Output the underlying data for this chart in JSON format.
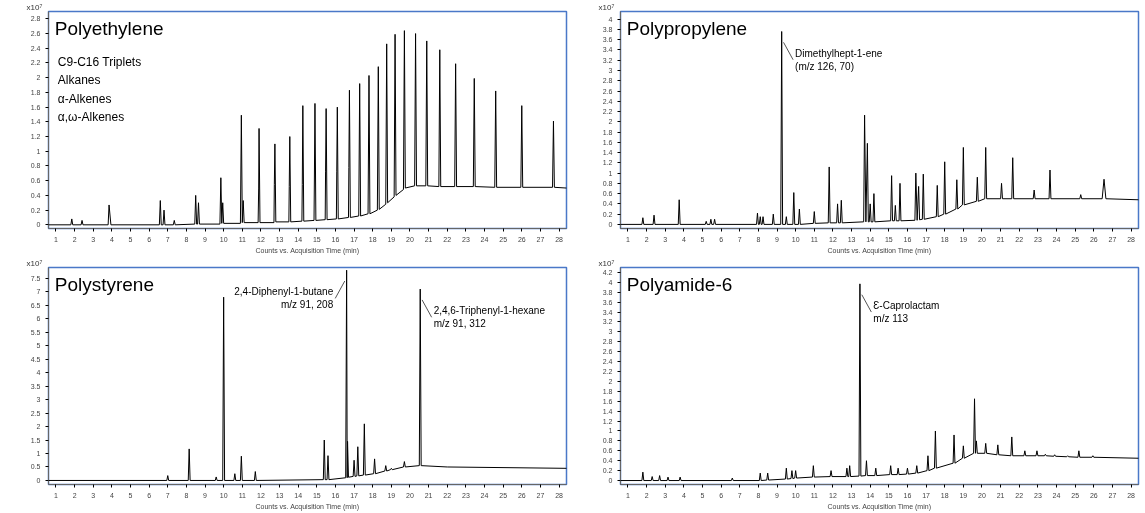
{
  "chart_data": [
    {
      "type": "line",
      "title": "Polyethylene",
      "xlabel": "Counts vs. Acquisition Time (min)",
      "ylabel": "x10⁷",
      "annotations": [
        "C9-C16 Triplets",
        "Alkanes",
        "α-Alkenes",
        "α,ω-Alkenes"
      ],
      "xlim": [
        0.6,
        28.4
      ],
      "xticks": [
        1,
        2,
        3,
        4,
        5,
        6,
        7,
        8,
        9,
        10,
        11,
        12,
        13,
        14,
        15,
        16,
        17,
        18,
        19,
        20,
        21,
        22,
        23,
        24,
        25,
        26,
        27,
        28
      ],
      "ylim": [
        -0.05,
        2.9
      ],
      "yticks": [
        0,
        0.2,
        0.4,
        0.6,
        0.8,
        1,
        1.2,
        1.4,
        1.6,
        1.8,
        2,
        2.2,
        2.4,
        2.6,
        2.8
      ],
      "series": [
        {
          "color": "#000000",
          "x": [
            0.6,
            1.8,
            1.85,
            1.9,
            2.35,
            2.4,
            2.45,
            3.8,
            3.85,
            3.95,
            6.55,
            6.6,
            6.65,
            6.75,
            6.8,
            6.85,
            7.3,
            7.35,
            7.4,
            8.45,
            8.5,
            8.55,
            8.6,
            8.65,
            8.7,
            9.8,
            9.85,
            9.9,
            9.95,
            10,
            10.9,
            10.95,
            11,
            11.05,
            11.1,
            11.85,
            11.88,
            11.9,
            11.95,
            12.7,
            12.72,
            12.75,
            12.8,
            13.5,
            13.52,
            13.55,
            13.6,
            14.2,
            14.22,
            14.25,
            14.3,
            14.85,
            14.87,
            14.9,
            14.95,
            15.45,
            15.47,
            15.5,
            15.55,
            16.05,
            16.07,
            16.1,
            16.15,
            16.7,
            16.72,
            16.75,
            16.8,
            17.25,
            17.3,
            17.35,
            17.75,
            17.8,
            17.85,
            18.25,
            18.3,
            18.35,
            18.7,
            18.75,
            18.8,
            19.15,
            19.2,
            19.25,
            19.65,
            19.7,
            19.75,
            20.25,
            20.3,
            20.35,
            20.85,
            20.9,
            20.95,
            21.55,
            21.6,
            21.65,
            22.4,
            22.45,
            22.5,
            23.4,
            23.45,
            23.5,
            24.55,
            24.6,
            24.65,
            25.95,
            26,
            26.05,
            27.65,
            27.7,
            27.75,
            28.4
          ],
          "values": [
            0,
            0,
            0.08,
            0,
            0,
            0.06,
            0,
            0,
            0.27,
            0,
            0,
            0.33,
            0,
            0,
            0.2,
            0,
            0,
            0.06,
            0,
            0.01,
            0.4,
            0.01,
            0.01,
            0.3,
            0.01,
            0.01,
            0.64,
            0.02,
            0.3,
            0.02,
            0.02,
            1.49,
            0.03,
            0.33,
            0.03,
            0.03,
            0.5,
            1.31,
            0.03,
            0.03,
            0.55,
            1.1,
            0.04,
            0.04,
            0.52,
            1.2,
            0.04,
            0.05,
            0.55,
            1.62,
            0.05,
            0.06,
            0.65,
            1.65,
            0.06,
            0.07,
            0.73,
            1.58,
            0.07,
            0.08,
            0.72,
            1.6,
            0.08,
            0.1,
            0.78,
            1.83,
            0.1,
            0.12,
            1.92,
            0.12,
            0.15,
            2.03,
            0.15,
            0.2,
            2.15,
            0.21,
            0.28,
            2.46,
            0.3,
            0.38,
            2.59,
            0.4,
            0.48,
            2.64,
            0.5,
            0.53,
            2.6,
            0.53,
            0.53,
            2.5,
            0.53,
            0.52,
            2.38,
            0.52,
            0.52,
            2.19,
            0.52,
            0.52,
            1.99,
            0.52,
            0.51,
            1.82,
            0.51,
            0.51,
            1.62,
            0.51,
            0.51,
            1.41,
            0.51,
            0.5
          ]
        }
      ]
    },
    {
      "type": "line",
      "title": "Polypropylene",
      "xlabel": "Counts vs. Acquisition Time (min)",
      "ylabel": "x10⁷",
      "annotations": [
        {
          "text": "Dimethylhept-1-ene\n(m/z 126, 70)",
          "x": 9.25,
          "y": 3.76
        }
      ],
      "xlim": [
        0.6,
        28.4
      ],
      "xticks": [
        1,
        2,
        3,
        4,
        5,
        6,
        7,
        8,
        9,
        10,
        11,
        12,
        13,
        14,
        15,
        16,
        17,
        18,
        19,
        20,
        21,
        22,
        23,
        24,
        25,
        26,
        27,
        28
      ],
      "ylim": [
        -0.08,
        4.15
      ],
      "yticks": [
        0,
        0.2,
        0.4,
        0.6,
        0.8,
        1,
        1.2,
        1.4,
        1.6,
        1.8,
        2,
        2.2,
        2.4,
        2.6,
        2.8,
        3,
        3.2,
        3.4,
        3.6,
        3.8,
        4
      ],
      "series": [
        {
          "color": "#000000",
          "x": [
            0.6,
            1.75,
            1.8,
            1.85,
            2.35,
            2.4,
            2.45,
            3.7,
            3.75,
            3.8,
            5.15,
            5.2,
            5.25,
            5.4,
            5.45,
            5.5,
            5.6,
            5.65,
            5.7,
            7.9,
            7.95,
            8.0,
            8.05,
            8.1,
            8.15,
            8.2,
            8.25,
            8.3,
            8.75,
            8.8,
            8.85,
            9.2,
            9.25,
            9.3,
            9.45,
            9.5,
            9.55,
            9.85,
            9.9,
            9.95,
            10.15,
            10.2,
            10.25,
            10.95,
            11,
            11.05,
            11.75,
            11.8,
            11.85,
            12.2,
            12.25,
            12.3,
            12.4,
            12.45,
            12.5,
            13.65,
            13.7,
            13.77,
            13.85,
            13.9,
            13.95,
            14,
            14.05,
            14.15,
            14.2,
            14.25,
            15.1,
            15.15,
            15.2,
            15.3,
            15.35,
            15.4,
            15.55,
            15.6,
            15.65,
            16.4,
            16.45,
            16.52,
            16.6,
            16.65,
            16.8,
            16.85,
            16.9,
            17.55,
            17.6,
            17.65,
            17.95,
            18,
            18.05,
            18.6,
            18.65,
            18.7,
            18.95,
            19,
            19.05,
            19.7,
            19.75,
            19.8,
            20.15,
            20.2,
            20.25,
            21,
            21.05,
            21.1,
            21.6,
            21.65,
            21.7,
            22.75,
            22.8,
            22.85,
            23.6,
            23.65,
            23.7,
            25.25,
            25.3,
            25.35,
            26.45,
            26.55,
            26.65,
            28.4
          ],
          "values": [
            0,
            0,
            0.13,
            0,
            0,
            0.18,
            0,
            0,
            0.48,
            0,
            0,
            0.06,
            0,
            0,
            0.1,
            0,
            0,
            0.1,
            0,
            0,
            0.22,
            0,
            0,
            0.15,
            0,
            0,
            0.15,
            0,
            0,
            0.2,
            0,
            0,
            3.76,
            0,
            0,
            0.15,
            0,
            0,
            0.62,
            0,
            0,
            0.3,
            0,
            0.02,
            0.25,
            0.02,
            0.03,
            1.12,
            0.03,
            0.03,
            0.4,
            0.03,
            0.03,
            0.47,
            0.03,
            0.05,
            2.13,
            0.05,
            1.58,
            0.05,
            0.05,
            0.4,
            0.05,
            0.05,
            0.6,
            0.05,
            0.07,
            0.95,
            0.07,
            0.07,
            0.37,
            0.07,
            0.07,
            0.8,
            0.07,
            0.08,
            1,
            0.08,
            0.74,
            0.09,
            0.1,
            0.98,
            0.1,
            0.15,
            0.76,
            0.15,
            0.2,
            1.22,
            0.2,
            0.3,
            0.87,
            0.3,
            0.38,
            1.5,
            0.38,
            0.45,
            0.92,
            0.45,
            0.5,
            1.5,
            0.5,
            0.5,
            0.8,
            0.5,
            0.5,
            1.3,
            0.5,
            0.5,
            0.67,
            0.5,
            0.5,
            1.06,
            0.5,
            0.5,
            0.58,
            0.5,
            0.5,
            0.88,
            0.5,
            0.48
          ]
        }
      ]
    },
    {
      "type": "line",
      "title": "Polystyrene",
      "xlabel": "Counts vs. Acquisition Time (min)",
      "ylabel": "x10⁷",
      "annotations": [
        {
          "text": "2,4-Diphenyl-1-butane\nm/z 91, 208",
          "x": 16.6,
          "y": 7.8
        },
        {
          "text": "2,4,6-Triphenyl-1-hexane\nm/z 91, 312",
          "x": 20.55,
          "y": 7.1
        }
      ],
      "xlim": [
        0.6,
        28.4
      ],
      "xticks": [
        1,
        2,
        3,
        4,
        5,
        6,
        7,
        8,
        9,
        10,
        11,
        12,
        13,
        14,
        15,
        16,
        17,
        18,
        19,
        20,
        21,
        22,
        23,
        24,
        25,
        26,
        27,
        28
      ],
      "ylim": [
        -0.15,
        7.9
      ],
      "yticks": [
        0,
        0.5,
        1,
        1.5,
        2,
        2.5,
        3,
        3.5,
        4,
        4.5,
        5,
        5.5,
        6,
        6.5,
        7,
        7.5
      ],
      "series": [
        {
          "color": "#000000",
          "x": [
            0.6,
            6.95,
            7,
            7.05,
            8.1,
            8.15,
            8.2,
            9.55,
            9.6,
            9.65,
            9.95,
            10,
            10.05,
            10.55,
            10.6,
            10.65,
            10.9,
            10.95,
            11,
            11.65,
            11.7,
            11.75,
            15.35,
            15.4,
            15.45,
            15.55,
            15.6,
            15.65,
            16.55,
            16.6,
            16.63,
            16.65,
            16.7,
            16.95,
            17,
            17.05,
            17.15,
            17.2,
            17.25,
            17.5,
            17.55,
            17.6,
            18.05,
            18.1,
            18.15,
            18.65,
            18.7,
            18.75,
            18.95,
            19,
            19.05,
            19.65,
            19.7,
            19.75,
            20.5,
            20.55,
            20.6,
            22,
            28.4
          ],
          "values": [
            0,
            0,
            0.18,
            0,
            0,
            1.17,
            0,
            0,
            0.13,
            0,
            0,
            6.8,
            0,
            0,
            0.25,
            0,
            0,
            0.9,
            0,
            0,
            0.33,
            0,
            0.03,
            1.5,
            0.03,
            0.03,
            0.92,
            0.03,
            0.1,
            7.8,
            0.1,
            1.45,
            0.12,
            0.15,
            0.75,
            0.15,
            0.17,
            1.25,
            0.17,
            0.2,
            2.1,
            0.2,
            0.25,
            0.8,
            0.25,
            0.35,
            0.55,
            0.35,
            0.4,
            0.45,
            0.4,
            0.5,
            0.7,
            0.5,
            0.55,
            7.1,
            0.55,
            0.5,
            0.45
          ]
        }
      ]
    },
    {
      "type": "line",
      "title": "Polyamide-6",
      "xlabel": "Counts vs. Acquisition Time (min)",
      "ylabel": "x10⁷",
      "annotations": [
        {
          "text": "Ɛ-Caprolactam\nm/z 113",
          "x": 13.45,
          "y": 3.97
        }
      ],
      "xlim": [
        0.6,
        28.4
      ],
      "xticks": [
        1,
        2,
        3,
        4,
        5,
        6,
        7,
        8,
        9,
        10,
        11,
        12,
        13,
        14,
        15,
        16,
        17,
        18,
        19,
        20,
        21,
        22,
        23,
        24,
        25,
        26,
        27,
        28
      ],
      "ylim": [
        -0.08,
        4.3
      ],
      "yticks": [
        0,
        0.2,
        0.4,
        0.6,
        0.8,
        1,
        1.2,
        1.4,
        1.6,
        1.8,
        2,
        2.2,
        2.4,
        2.6,
        2.8,
        3,
        3.2,
        3.4,
        3.6,
        3.8,
        4,
        4.2
      ],
      "series": [
        {
          "color": "#000000",
          "x": [
            0.6,
            1.75,
            1.8,
            1.85,
            2.25,
            2.3,
            2.35,
            2.65,
            2.7,
            2.75,
            3.1,
            3.15,
            3.2,
            3.75,
            3.8,
            3.85,
            6.55,
            6.6,
            6.65,
            8.05,
            8.1,
            8.15,
            8.45,
            8.5,
            8.55,
            9.45,
            9.5,
            9.55,
            9.75,
            9.8,
            9.85,
            9.95,
            10,
            10.05,
            10.9,
            10.95,
            11,
            11.85,
            11.9,
            11.95,
            12.7,
            12.75,
            12.8,
            12.85,
            12.9,
            12.95,
            13.4,
            13.45,
            13.5,
            13.75,
            13.8,
            13.85,
            14.25,
            14.3,
            14.35,
            15.05,
            15.1,
            15.15,
            15.45,
            15.5,
            15.55,
            15.95,
            16,
            16.05,
            16.45,
            16.5,
            16.55,
            17.05,
            17.1,
            17.15,
            17.45,
            17.5,
            17.55,
            18.45,
            18.5,
            18.55,
            18.95,
            19,
            19.05,
            19.55,
            19.6,
            19.65,
            19.7,
            19.75,
            20.15,
            20.2,
            20.25,
            20.8,
            20.85,
            20.9,
            21.55,
            21.6,
            21.65,
            22.25,
            22.3,
            22.35,
            22.9,
            22.95,
            23,
            23.35,
            23.4,
            23.45,
            23.85,
            23.9,
            23.95,
            24.55,
            24.6,
            24.65,
            25.15,
            25.2,
            25.25,
            25.9,
            25.95,
            26,
            28.4
          ],
          "values": [
            0,
            0,
            0.17,
            0,
            0,
            0.08,
            0,
            0,
            0.1,
            0,
            0,
            0.07,
            0,
            0,
            0.07,
            0,
            0,
            0.05,
            0,
            0,
            0.15,
            0,
            0.01,
            0.15,
            0.01,
            0.03,
            0.25,
            0.03,
            0.04,
            0.2,
            0.04,
            0.05,
            0.2,
            0.05,
            0.07,
            0.3,
            0.07,
            0.08,
            0.2,
            0.08,
            0.08,
            0.25,
            0.08,
            0.08,
            0.3,
            0.08,
            0.09,
            3.97,
            0.09,
            0.1,
            0.4,
            0.1,
            0.1,
            0.25,
            0.1,
            0.12,
            0.3,
            0.12,
            0.12,
            0.25,
            0.12,
            0.13,
            0.25,
            0.13,
            0.15,
            0.3,
            0.15,
            0.2,
            0.5,
            0.2,
            0.25,
            1,
            0.25,
            0.35,
            0.92,
            0.35,
            0.45,
            0.7,
            0.45,
            0.55,
            1.65,
            0.55,
            0.8,
            0.55,
            0.55,
            0.75,
            0.55,
            0.52,
            0.72,
            0.52,
            0.5,
            0.88,
            0.5,
            0.5,
            0.6,
            0.5,
            0.5,
            0.6,
            0.5,
            0.5,
            0.53,
            0.5,
            0.49,
            0.52,
            0.49,
            0.48,
            0.5,
            0.48,
            0.47,
            0.6,
            0.47,
            0.47,
            0.5,
            0.47,
            0.45
          ]
        }
      ]
    }
  ]
}
